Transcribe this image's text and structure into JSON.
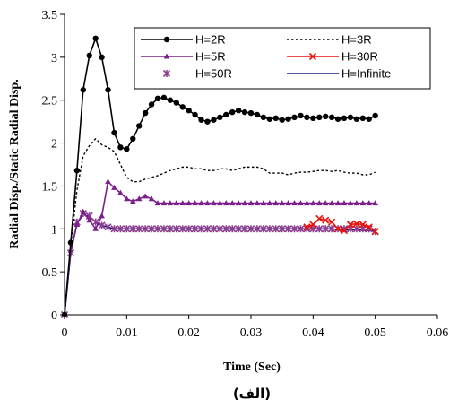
{
  "chart_data": {
    "type": "line",
    "xlabel": "Time (Sec)",
    "ylabel": "Radial Disp./Static Radial Disp.",
    "caption": "(الف)",
    "xlim": [
      0,
      0.06
    ],
    "ylim": [
      0,
      3.5
    ],
    "xticks": [
      "0",
      "0.01",
      "0.02",
      "0.03",
      "0.04",
      "0.05",
      "0.06"
    ],
    "yticks": [
      "0",
      "0.5",
      "1",
      "1.5",
      "2",
      "2.5",
      "3",
      "3.5"
    ],
    "legend_position": "top-right",
    "series": [
      {
        "name": "H=2R",
        "color": "#000000",
        "line": "solid",
        "marker": "circle",
        "x": [
          0,
          0.001,
          0.002,
          0.003,
          0.004,
          0.005,
          0.006,
          0.007,
          0.008,
          0.009,
          0.01,
          0.011,
          0.012,
          0.013,
          0.014,
          0.015,
          0.016,
          0.017,
          0.018,
          0.019,
          0.02,
          0.021,
          0.022,
          0.023,
          0.024,
          0.025,
          0.026,
          0.027,
          0.028,
          0.029,
          0.03,
          0.031,
          0.032,
          0.033,
          0.034,
          0.035,
          0.036,
          0.037,
          0.038,
          0.039,
          0.04,
          0.041,
          0.042,
          0.043,
          0.044,
          0.045,
          0.046,
          0.047,
          0.048,
          0.049,
          0.05
        ],
        "y": [
          0,
          0.84,
          1.68,
          2.62,
          3.02,
          3.22,
          3.0,
          2.62,
          2.12,
          1.95,
          1.93,
          2.05,
          2.2,
          2.35,
          2.45,
          2.52,
          2.53,
          2.5,
          2.47,
          2.42,
          2.38,
          2.33,
          2.27,
          2.25,
          2.27,
          2.3,
          2.33,
          2.36,
          2.38,
          2.36,
          2.35,
          2.33,
          2.3,
          2.28,
          2.29,
          2.27,
          2.28,
          2.3,
          2.32,
          2.3,
          2.29,
          2.3,
          2.31,
          2.3,
          2.28,
          2.29,
          2.3,
          2.28,
          2.29,
          2.28,
          2.32
        ]
      },
      {
        "name": "H=3R",
        "color": "#000000",
        "line": "dotted",
        "marker": "none",
        "x": [
          0,
          0.001,
          0.002,
          0.003,
          0.004,
          0.005,
          0.006,
          0.007,
          0.008,
          0.009,
          0.01,
          0.011,
          0.012,
          0.013,
          0.014,
          0.015,
          0.016,
          0.017,
          0.018,
          0.019,
          0.02,
          0.021,
          0.022,
          0.023,
          0.024,
          0.025,
          0.026,
          0.027,
          0.028,
          0.029,
          0.03,
          0.031,
          0.032,
          0.033,
          0.034,
          0.035,
          0.036,
          0.037,
          0.038,
          0.039,
          0.04,
          0.041,
          0.042,
          0.043,
          0.044,
          0.045,
          0.046,
          0.047,
          0.048,
          0.049,
          0.05
        ],
        "y": [
          0,
          0.8,
          1.45,
          1.85,
          1.97,
          2.05,
          1.98,
          1.95,
          1.9,
          1.75,
          1.6,
          1.55,
          1.55,
          1.58,
          1.6,
          1.62,
          1.65,
          1.68,
          1.7,
          1.72,
          1.72,
          1.7,
          1.7,
          1.68,
          1.68,
          1.7,
          1.7,
          1.68,
          1.7,
          1.72,
          1.72,
          1.72,
          1.7,
          1.65,
          1.65,
          1.65,
          1.63,
          1.65,
          1.66,
          1.66,
          1.67,
          1.68,
          1.68,
          1.67,
          1.68,
          1.66,
          1.65,
          1.65,
          1.63,
          1.63,
          1.66
        ]
      },
      {
        "name": "H=5R",
        "color": "#7B1F8A",
        "line": "solid",
        "marker": "triangle",
        "x": [
          0,
          0.001,
          0.002,
          0.003,
          0.004,
          0.005,
          0.006,
          0.007,
          0.008,
          0.009,
          0.01,
          0.011,
          0.012,
          0.013,
          0.014,
          0.015,
          0.016,
          0.017,
          0.018,
          0.019,
          0.02,
          0.021,
          0.022,
          0.023,
          0.024,
          0.025,
          0.026,
          0.027,
          0.028,
          0.029,
          0.03,
          0.031,
          0.032,
          0.033,
          0.034,
          0.035,
          0.036,
          0.037,
          0.038,
          0.039,
          0.04,
          0.041,
          0.042,
          0.043,
          0.044,
          0.045,
          0.046,
          0.047,
          0.048,
          0.049,
          0.05
        ],
        "y": [
          0,
          0.75,
          1.05,
          1.2,
          1.1,
          1.0,
          1.15,
          1.55,
          1.48,
          1.42,
          1.35,
          1.32,
          1.35,
          1.38,
          1.35,
          1.3,
          1.3,
          1.3,
          1.3,
          1.3,
          1.3,
          1.3,
          1.3,
          1.3,
          1.3,
          1.3,
          1.3,
          1.3,
          1.3,
          1.3,
          1.3,
          1.3,
          1.3,
          1.3,
          1.3,
          1.3,
          1.3,
          1.3,
          1.3,
          1.3,
          1.3,
          1.3,
          1.3,
          1.3,
          1.3,
          1.3,
          1.3,
          1.3,
          1.3,
          1.3,
          1.3
        ]
      },
      {
        "name": "H=30R",
        "color": "#E8140C",
        "line": "solid",
        "marker": "cross",
        "x": [
          0.039,
          0.04,
          0.041,
          0.042,
          0.043,
          0.044,
          0.045,
          0.046,
          0.047,
          0.048,
          0.049,
          0.05
        ],
        "y": [
          1.02,
          1.05,
          1.12,
          1.1,
          1.08,
          1.0,
          0.98,
          1.05,
          1.06,
          1.05,
          1.02,
          0.97
        ]
      },
      {
        "name": "H=50R",
        "color": "#8E3E8E",
        "line": "none",
        "marker": "star",
        "x": [
          0,
          0.001,
          0.002,
          0.003,
          0.004,
          0.005,
          0.006,
          0.007,
          0.008,
          0.009,
          0.01,
          0.011,
          0.012,
          0.013,
          0.014,
          0.015,
          0.016,
          0.017,
          0.018,
          0.019,
          0.02,
          0.021,
          0.022,
          0.023,
          0.024,
          0.025,
          0.026,
          0.027,
          0.028,
          0.029,
          0.03,
          0.031,
          0.032,
          0.033,
          0.034,
          0.035,
          0.036,
          0.037,
          0.038,
          0.039,
          0.04,
          0.041,
          0.042,
          0.043,
          0.044,
          0.045,
          0.046,
          0.047,
          0.048,
          0.049,
          0.05
        ],
        "y": [
          0,
          0.72,
          1.08,
          1.18,
          1.15,
          1.08,
          1.04,
          1.02,
          1.0,
          1.0,
          1.0,
          1.0,
          1.0,
          1.0,
          1.0,
          1.0,
          1.0,
          1.0,
          1.0,
          1.0,
          1.0,
          1.0,
          1.0,
          1.0,
          1.0,
          1.0,
          1.0,
          1.0,
          1.0,
          1.0,
          1.0,
          1.0,
          1.0,
          1.0,
          1.0,
          1.0,
          1.0,
          1.0,
          1.0,
          1.0,
          1.0,
          1.0,
          1.0,
          1.0,
          1.0,
          1.0,
          1.0,
          1.0,
          1.0,
          1.0,
          0.97
        ]
      },
      {
        "name": "H=Infinite",
        "color": "#1F1F7A",
        "line": "solid",
        "marker": "none",
        "x": [
          0,
          0.001,
          0.002,
          0.003,
          0.004,
          0.005,
          0.006,
          0.007,
          0.008,
          0.009,
          0.01,
          0.011,
          0.012,
          0.013,
          0.014,
          0.015,
          0.016,
          0.017,
          0.018,
          0.019,
          0.02,
          0.021,
          0.022,
          0.023,
          0.024,
          0.025,
          0.026,
          0.027,
          0.028,
          0.029,
          0.03,
          0.031,
          0.032,
          0.033,
          0.034,
          0.035,
          0.036,
          0.037,
          0.038,
          0.039,
          0.04,
          0.041,
          0.042,
          0.043,
          0.044,
          0.045,
          0.046,
          0.047,
          0.048,
          0.049,
          0.05
        ],
        "y": [
          0,
          0.72,
          1.06,
          1.17,
          1.14,
          1.08,
          1.04,
          1.02,
          1.0,
          1.0,
          1.0,
          1.0,
          1.0,
          1.0,
          1.0,
          1.0,
          1.0,
          1.0,
          1.0,
          1.0,
          1.0,
          1.0,
          1.0,
          1.0,
          1.0,
          1.0,
          1.0,
          1.0,
          1.0,
          1.0,
          1.0,
          1.0,
          1.0,
          1.0,
          1.0,
          1.0,
          1.0,
          1.0,
          1.0,
          1.0,
          1.0,
          1.0,
          1.0,
          1.0,
          0.99,
          0.99,
          0.99,
          0.99,
          0.98,
          0.98,
          0.97
        ]
      }
    ]
  }
}
